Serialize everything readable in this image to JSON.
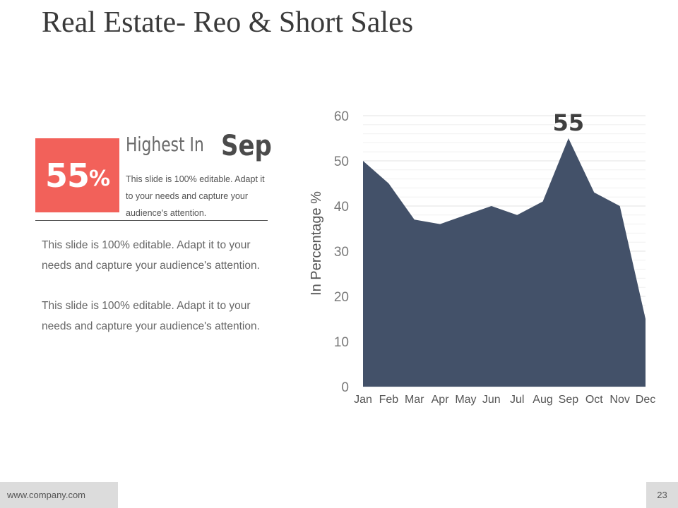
{
  "slide": {
    "title": "Real Estate- Reo & Short Sales",
    "highlight": {
      "number": "55",
      "percent_sign": "%",
      "headline": "Highest  In",
      "month": "Sep",
      "description": "This slide is 100% editable. Adapt it to your needs and capture your audience's attention."
    },
    "paragraphs": [
      "This slide is 100% editable. Adapt it to your needs and capture your audience's attention.",
      "This slide is 100% editable. Adapt it to your needs and capture your audience's attention."
    ],
    "footer": {
      "website": "www.company.com",
      "page_number": "23"
    }
  },
  "colors": {
    "accent": "#f2615a",
    "area_fill": "#435169"
  },
  "chart_data": {
    "type": "area",
    "categories": [
      "Jan",
      "Feb",
      "Mar",
      "Apr",
      "May",
      "Jun",
      "Jul",
      "Aug",
      "Sep",
      "Oct",
      "Nov",
      "Dec"
    ],
    "series": [
      {
        "values": [
          50,
          45,
          37,
          36,
          38,
          40,
          38,
          41,
          55,
          43,
          40,
          15
        ]
      }
    ],
    "ylabel": "In Percentage %",
    "ylim": [
      0,
      60
    ],
    "yticks": [
      "0",
      "10",
      "20",
      "30",
      "40",
      "50",
      "60"
    ],
    "grid": true,
    "data_labels": [
      {
        "category": "Sep",
        "text": "55"
      }
    ]
  }
}
